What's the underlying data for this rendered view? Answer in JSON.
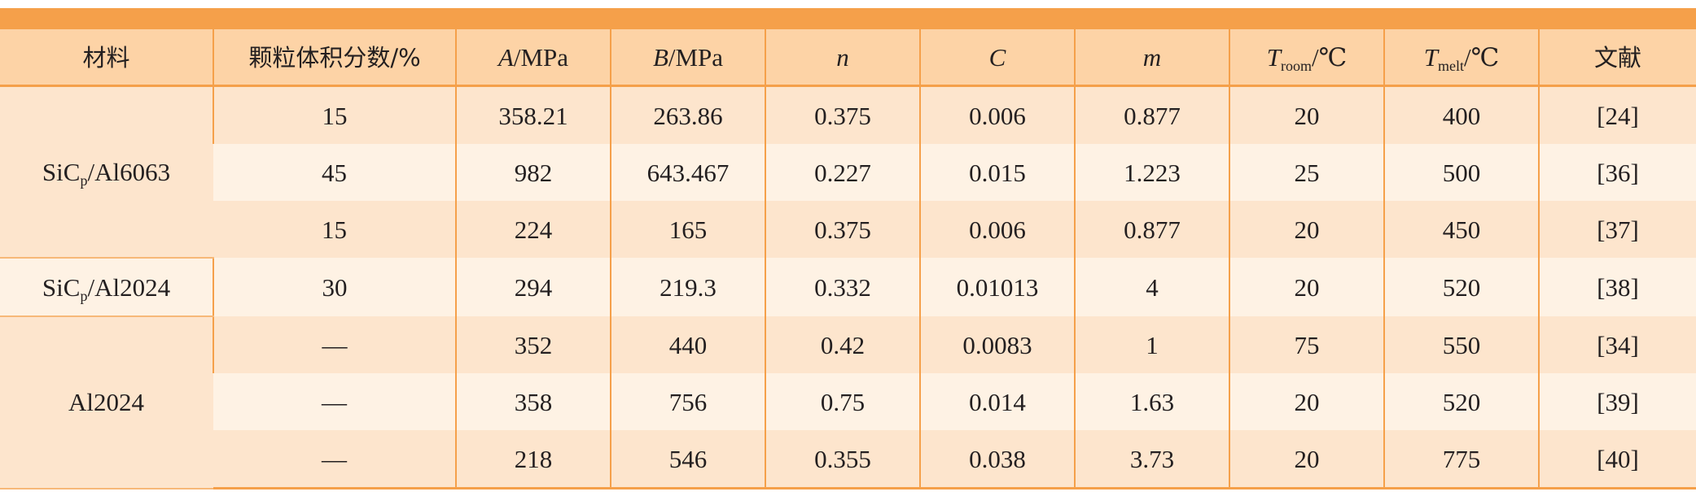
{
  "header": {
    "material": "材料",
    "fraction_label": "颗粒体积分数/%",
    "A": {
      "sym": "A",
      "unit": "/MPa"
    },
    "B": {
      "sym": "B",
      "unit": "/MPa"
    },
    "n": "n",
    "C": "C",
    "m": "m",
    "troom": {
      "sym": "T",
      "sub": "room",
      "unit": "/℃"
    },
    "tmelt": {
      "sym": "T",
      "sub": "melt",
      "unit": "/℃"
    },
    "ref": "文献"
  },
  "materials": {
    "g1": {
      "base": "SiC",
      "sub": "p",
      "rest": "/Al6063"
    },
    "g2": {
      "base": "SiC",
      "sub": "p",
      "rest": "/Al2024"
    },
    "g3": {
      "base": "Al2024"
    }
  },
  "rows": [
    {
      "fraction": "15",
      "A": "358.21",
      "B": "263.86",
      "n": "0.375",
      "C": "0.006",
      "m": "0.877",
      "troom": "20",
      "tmelt": "400",
      "ref": "[24]"
    },
    {
      "fraction": "45",
      "A": "982",
      "B": "643.467",
      "n": "0.227",
      "C": "0.015",
      "m": "1.223",
      "troom": "25",
      "tmelt": "500",
      "ref": "[36]"
    },
    {
      "fraction": "15",
      "A": "224",
      "B": "165",
      "n": "0.375",
      "C": "0.006",
      "m": "0.877",
      "troom": "20",
      "tmelt": "450",
      "ref": "[37]"
    },
    {
      "fraction": "30",
      "A": "294",
      "B": "219.3",
      "n": "0.332",
      "C": "0.01013",
      "m": "4",
      "troom": "20",
      "tmelt": "520",
      "ref": "[38]"
    },
    {
      "fraction": "—",
      "A": "352",
      "B": "440",
      "n": "0.42",
      "C": "0.0083",
      "m": "1",
      "troom": "75",
      "tmelt": "550",
      "ref": "[34]"
    },
    {
      "fraction": "—",
      "A": "358",
      "B": "756",
      "n": "0.75",
      "C": "0.014",
      "m": "1.63",
      "troom": "20",
      "tmelt": "520",
      "ref": "[39]"
    },
    {
      "fraction": "—",
      "A": "218",
      "B": "546",
      "n": "0.355",
      "C": "0.038",
      "m": "3.73",
      "troom": "20",
      "tmelt": "775",
      "ref": "[40]"
    }
  ],
  "colors": {
    "header_bar": "#f5a04a",
    "header_bg": "#fdd3a6",
    "row_even": "#fde5cd",
    "row_odd": "#fef2e4"
  }
}
